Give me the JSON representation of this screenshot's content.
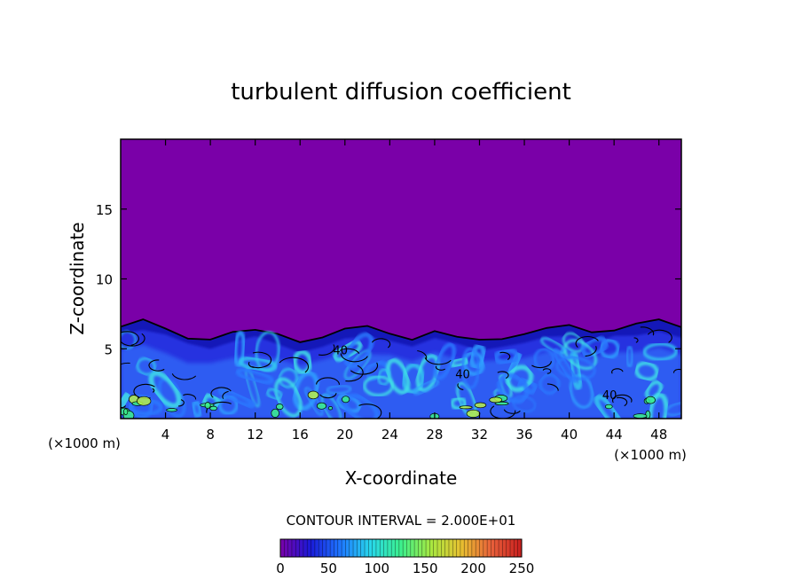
{
  "chart_data": {
    "type": "heatmap",
    "title": "turbulent diffusion coefficient",
    "xlabel": "X-coordinate",
    "ylabel": "Z-coordinate",
    "x_unit": "(×1000 m)",
    "y_unit": "(×1000 m)",
    "xlim": [
      0,
      50
    ],
    "ylim": [
      0,
      20
    ],
    "x_ticks": [
      4,
      8,
      12,
      16,
      20,
      24,
      28,
      32,
      36,
      40,
      44,
      48
    ],
    "y_ticks": [
      5,
      10,
      15
    ],
    "contour_interval_label": "CONTOUR INTERVAL = 2.000E+01",
    "contour_interval": 20,
    "contour_labels": [
      {
        "text": "40",
        "x": 19.6,
        "z": 4.6
      },
      {
        "text": "40",
        "x": 30.5,
        "z": 2.9
      },
      {
        "text": "40",
        "x": 43.6,
        "z": 1.4
      }
    ],
    "colorbar": {
      "min": 0,
      "max": 250,
      "ticks": [
        0,
        50,
        100,
        150,
        200,
        250
      ],
      "colors": [
        "#7a00a8",
        "#1a1ad8",
        "#1e78ff",
        "#28d8ea",
        "#3cf08c",
        "#a8e840",
        "#e8c030",
        "#e8603a",
        "#c81e1e"
      ]
    },
    "field": {
      "background_color": "#7a00a8",
      "turbulent_layer_top_km": [
        6.7,
        7.0,
        6.5,
        5.8,
        5.6,
        6.2,
        6.4,
        6.0,
        5.4,
        5.8,
        6.4,
        6.6,
        6.0,
        5.7,
        6.3,
        5.8,
        5.6,
        5.8,
        6.0,
        6.5,
        6.6,
        6.1,
        6.4,
        6.8,
        7.0,
        6.5
      ]
    }
  }
}
